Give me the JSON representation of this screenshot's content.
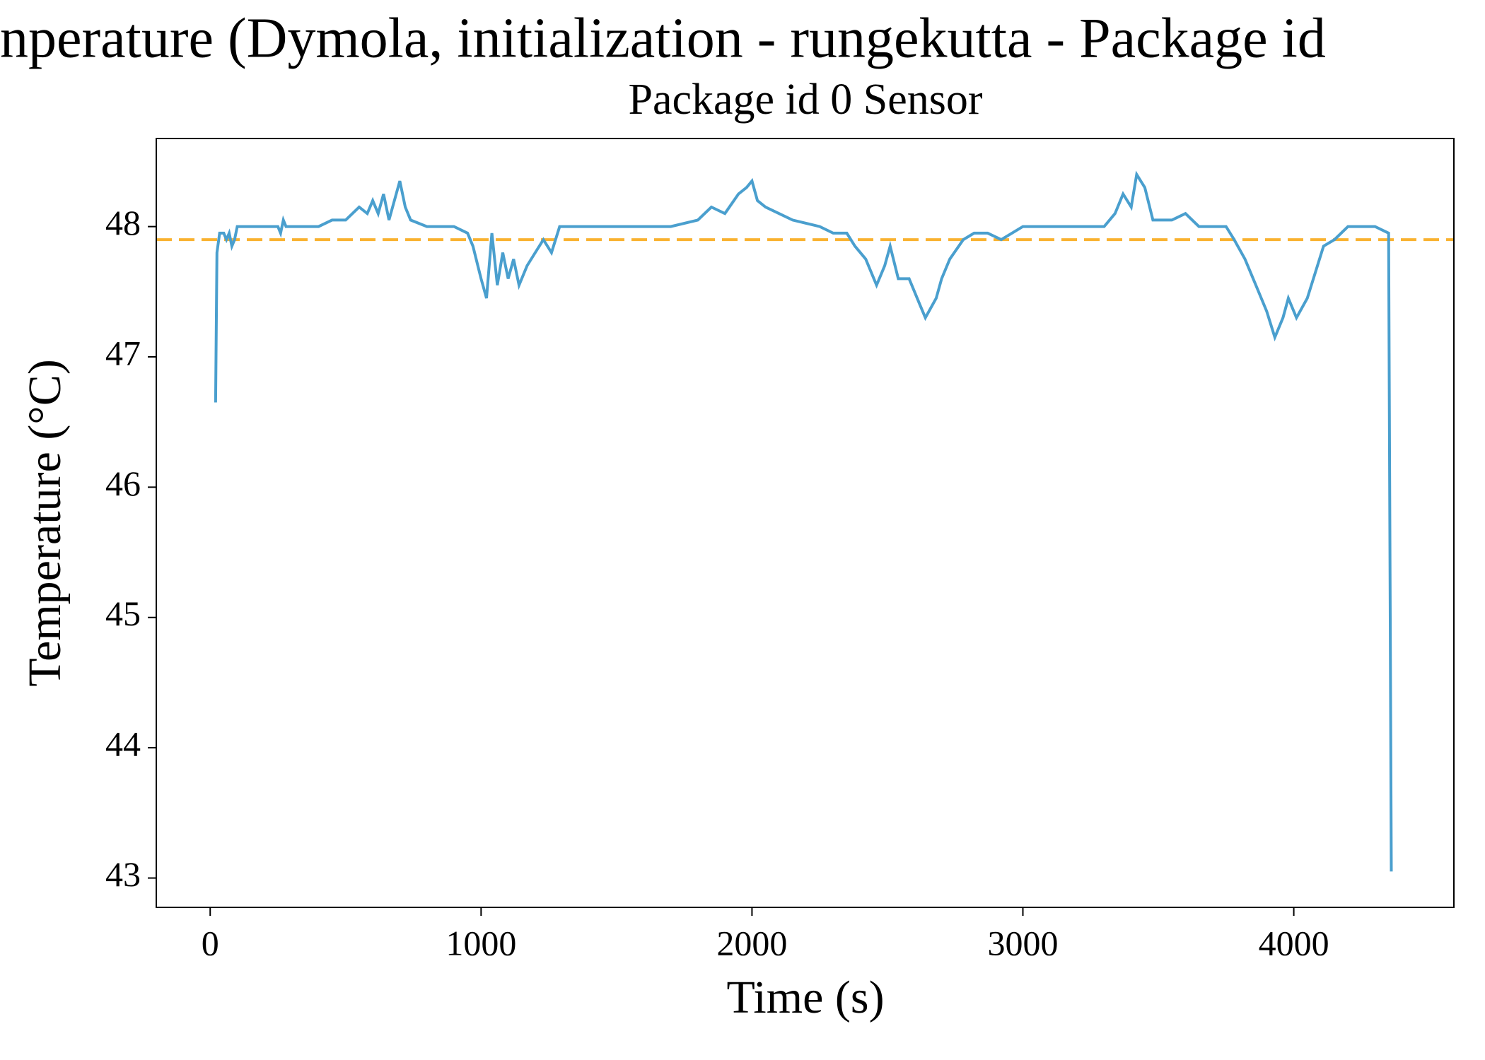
{
  "chart_data": {
    "type": "line",
    "title": "nperature (Dymola, initialization - rungekutta - Package id",
    "subtitle": "Package id 0 Sensor",
    "x_label": "Time (s)",
    "y_label": "Temperature (°C)",
    "xlim": [
      -199,
      4591
    ],
    "ylim": [
      42.775,
      48.676
    ],
    "xticks": [
      0,
      1000,
      2000,
      3000,
      4000
    ],
    "yticks": [
      43,
      44,
      45,
      46,
      47,
      48
    ],
    "reference_line": {
      "value": 47.9,
      "color": "#f9b231"
    },
    "series": [
      {
        "color": "#4a9fce",
        "x": [
          20,
          25,
          35,
          50,
          60,
          70,
          80,
          90,
          100,
          150,
          250,
          260,
          270,
          280,
          350,
          400,
          450,
          500,
          550,
          580,
          600,
          620,
          640,
          660,
          700,
          720,
          740,
          800,
          900,
          950,
          970,
          1000,
          1020,
          1040,
          1060,
          1080,
          1100,
          1120,
          1140,
          1170,
          1200,
          1230,
          1260,
          1290,
          1400,
          1500,
          1700,
          1800,
          1850,
          1900,
          1950,
          1980,
          2000,
          2020,
          2050,
          2100,
          2150,
          2250,
          2300,
          2350,
          2380,
          2420,
          2460,
          2490,
          2510,
          2540,
          2580,
          2620,
          2640,
          2680,
          2700,
          2730,
          2780,
          2820,
          2870,
          2920,
          3000,
          3100,
          3300,
          3340,
          3370,
          3400,
          3420,
          3450,
          3480,
          3550,
          3600,
          3650,
          3700,
          3750,
          3780,
          3820,
          3860,
          3900,
          3930,
          3960,
          3980,
          4010,
          4050,
          4080,
          4110,
          4150,
          4200,
          4300,
          4350,
          4360
        ],
        "values": [
          46.65,
          47.8,
          47.95,
          47.95,
          47.9,
          47.95,
          47.85,
          47.9,
          48.0,
          48.0,
          48.0,
          47.95,
          48.05,
          48.0,
          48.0,
          48.0,
          48.05,
          48.05,
          48.15,
          48.1,
          48.2,
          48.1,
          48.25,
          48.05,
          48.35,
          48.15,
          48.05,
          48.0,
          48.0,
          47.95,
          47.85,
          47.6,
          47.45,
          47.95,
          47.55,
          47.8,
          47.6,
          47.75,
          47.55,
          47.7,
          47.8,
          47.9,
          47.8,
          48.0,
          48.0,
          48.0,
          48.0,
          48.05,
          48.15,
          48.1,
          48.25,
          48.3,
          48.35,
          48.2,
          48.15,
          48.1,
          48.05,
          48.0,
          47.95,
          47.95,
          47.85,
          47.75,
          47.55,
          47.7,
          47.85,
          47.6,
          47.6,
          47.4,
          47.3,
          47.45,
          47.6,
          47.75,
          47.9,
          47.95,
          47.95,
          47.9,
          48.0,
          48.0,
          48.0,
          48.1,
          48.25,
          48.15,
          48.4,
          48.3,
          48.05,
          48.05,
          48.1,
          48.0,
          48.0,
          48.0,
          47.9,
          47.75,
          47.55,
          47.35,
          47.15,
          47.3,
          47.45,
          47.3,
          47.45,
          47.65,
          47.85,
          47.9,
          48.0,
          48.0,
          47.95,
          43.05
        ]
      }
    ]
  }
}
